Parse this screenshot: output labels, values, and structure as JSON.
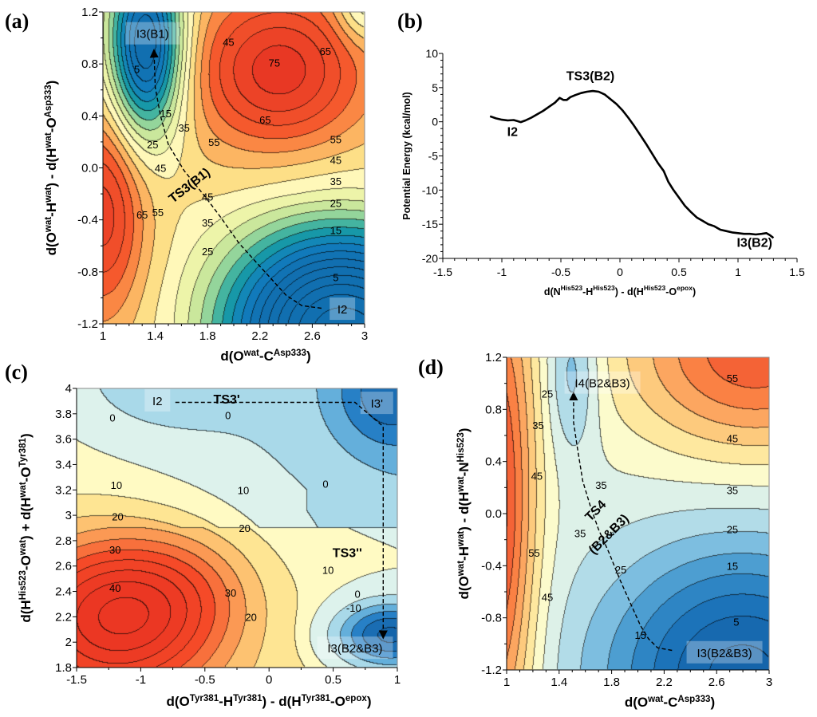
{
  "chart_data": [
    {
      "id": "a",
      "panel_label": "(a)",
      "type": "heatmap",
      "subtype": "filled-contour",
      "xlabel": {
        "pre": "d(O",
        "sup1": "wat",
        "mid": "-C",
        "sup2": "Asp333",
        "post": ")"
      },
      "ylabel": {
        "pre": "d(O",
        "sup1": "wat",
        "mid": "-H",
        "sup2": "wat",
        "mid2": ") - d(H",
        "sup3": "wat",
        "mid3": "-O",
        "sup4": "Asp333",
        "post": ")"
      },
      "xlim": [
        1,
        3
      ],
      "ylim": [
        -1.2,
        1.2
      ],
      "xticks": [
        "1",
        "1.4",
        "1.8",
        "2.2",
        "2.6",
        "3"
      ],
      "yticks": [
        "-1.2",
        "-0.8",
        "-0.4",
        "0.0",
        "0.4",
        "0.8",
        "1.2"
      ],
      "contour_levels": [
        5,
        15,
        25,
        35,
        45,
        55,
        65,
        75
      ],
      "contour_labels": [
        {
          "text": "5",
          "x": 1.26,
          "y": 0.76
        },
        {
          "text": "15",
          "x": 1.48,
          "y": 0.42
        },
        {
          "text": "25",
          "x": 1.38,
          "y": 0.18
        },
        {
          "text": "35",
          "x": 1.62,
          "y": 0.31
        },
        {
          "text": "45",
          "x": 1.44,
          "y": 0.0
        },
        {
          "text": "45",
          "x": 1.96,
          "y": 0.97
        },
        {
          "text": "55",
          "x": 1.85,
          "y": 0.2
        },
        {
          "text": "75",
          "x": 2.31,
          "y": 0.81
        },
        {
          "text": "65",
          "x": 2.7,
          "y": 0.9
        },
        {
          "text": "65",
          "x": 2.24,
          "y": 0.37
        },
        {
          "text": "55",
          "x": 2.78,
          "y": 0.22
        },
        {
          "text": "45",
          "x": 2.78,
          "y": 0.06
        },
        {
          "text": "35",
          "x": 2.78,
          "y": -0.1
        },
        {
          "text": "25",
          "x": 2.78,
          "y": -0.27
        },
        {
          "text": "15",
          "x": 2.78,
          "y": -0.48
        },
        {
          "text": "5",
          "x": 2.78,
          "y": -0.84
        },
        {
          "text": "65",
          "x": 1.3,
          "y": -0.36
        },
        {
          "text": "55",
          "x": 1.42,
          "y": -0.34
        },
        {
          "text": "45",
          "x": 1.8,
          "y": -0.22
        },
        {
          "text": "35",
          "x": 1.8,
          "y": -0.42
        },
        {
          "text": "25",
          "x": 1.8,
          "y": -0.64
        }
      ],
      "states": [
        {
          "label": "I3(B1)",
          "x": 1.38,
          "y": 1.03
        },
        {
          "label": "I2",
          "x": 2.83,
          "y": -1.09
        }
      ],
      "transition_states": [
        {
          "label": "TS3(B1)",
          "x": 1.68,
          "y": -0.16
        }
      ],
      "reaction_path": [
        [
          2.67,
          -1.08
        ],
        [
          2.52,
          -1.06
        ],
        [
          2.4,
          -0.98
        ],
        [
          2.22,
          -0.78
        ],
        [
          2.04,
          -0.58
        ],
        [
          1.9,
          -0.38
        ],
        [
          1.78,
          -0.22
        ],
        [
          1.62,
          -0.02
        ],
        [
          1.5,
          0.18
        ],
        [
          1.44,
          0.4
        ],
        [
          1.4,
          0.62
        ],
        [
          1.39,
          0.9
        ]
      ]
    },
    {
      "id": "b",
      "panel_label": "(b)",
      "type": "line",
      "xlabel": {
        "pre": "d(N",
        "sup1": "His523",
        "mid": "-H",
        "sup2": "His523",
        "mid2": ") - d(H",
        "sup3": "His523",
        "mid3": "-O",
        "sup4": "epox",
        "post": ")"
      },
      "ylabel": "Potential Energy (kcal/mol)",
      "xlim": [
        -1.5,
        1.5
      ],
      "ylim": [
        -20,
        10
      ],
      "xticks": [
        "-1.5",
        "-1",
        "-0.5",
        "0",
        "0.5",
        "1",
        "1.5"
      ],
      "yticks": [
        "-20",
        "-15",
        "-10",
        "-5",
        "0",
        "5",
        "10"
      ],
      "grid": false,
      "series": [
        {
          "name": "potential energy",
          "x": [
            -1.1,
            -1.05,
            -1.0,
            -0.95,
            -0.9,
            -0.87,
            -0.84,
            -0.8,
            -0.75,
            -0.7,
            -0.65,
            -0.6,
            -0.55,
            -0.51,
            -0.48,
            -0.45,
            -0.42,
            -0.38,
            -0.33,
            -0.28,
            -0.23,
            -0.18,
            -0.13,
            -0.08,
            -0.03,
            0.02,
            0.07,
            0.12,
            0.17,
            0.22,
            0.27,
            0.32,
            0.37,
            0.41,
            0.45,
            0.5,
            0.55,
            0.6,
            0.65,
            0.7,
            0.75,
            0.8,
            0.85,
            0.9,
            0.95,
            1.0,
            1.05,
            1.1,
            1.15,
            1.2,
            1.24,
            1.27,
            1.3
          ],
          "y": [
            0.8,
            0.5,
            0.3,
            0.2,
            0.25,
            0.1,
            -0.05,
            0.2,
            0.6,
            1.1,
            1.6,
            2.2,
            2.8,
            3.5,
            3.2,
            3.2,
            3.6,
            3.9,
            4.2,
            4.4,
            4.5,
            4.4,
            4.0,
            3.3,
            2.6,
            1.7,
            0.6,
            -0.6,
            -1.9,
            -3.2,
            -4.6,
            -6.0,
            -7.2,
            -8.8,
            -9.9,
            -11.1,
            -12.3,
            -13.2,
            -14.0,
            -14.5,
            -15.0,
            -15.3,
            -15.8,
            -16.0,
            -16.2,
            -16.3,
            -16.4,
            -16.4,
            -16.5,
            -16.4,
            -16.3,
            -16.6,
            -17.0
          ]
        }
      ],
      "annotations": [
        {
          "text": "TS3(B2)",
          "x": -0.25,
          "y": 6.1
        },
        {
          "text": "I2",
          "x": -0.91,
          "y": -2.1
        },
        {
          "text": "I3(B2)",
          "x": 1.14,
          "y": -18.3
        }
      ]
    },
    {
      "id": "c",
      "panel_label": "(c)",
      "type": "heatmap",
      "subtype": "filled-contour",
      "xlabel": {
        "pre": "d(O",
        "sup1": "Tyr381",
        "mid": "-H",
        "sup2": "Tyr381",
        "mid2": ") - d(H",
        "sup3": "Tyr381",
        "mid3": "-O",
        "sup4": "epox",
        "post": ")"
      },
      "ylabel": {
        "pre": "d(H",
        "sup1": "His523",
        "mid": "-O",
        "sup2": "wat",
        "mid2": ") + d(H",
        "sup3": "wat",
        "mid3": "-O",
        "sup4": "Tyr381",
        "post": ")"
      },
      "xlim": [
        -1.5,
        1
      ],
      "ylim": [
        1.8,
        4
      ],
      "xticks": [
        "-1.5",
        "-1",
        "-0.5",
        "0",
        "0.5",
        "1"
      ],
      "yticks": [
        "1.8",
        "2",
        "2.2",
        "2.4",
        "2.6",
        "2.8",
        "3",
        "3.2",
        "3.4",
        "3.6",
        "3.8",
        "4"
      ],
      "contour_levels": [
        -15,
        -10,
        -5,
        0,
        5,
        10,
        15,
        20,
        25,
        30,
        35,
        40
      ],
      "contour_labels": [
        {
          "text": "0",
          "x": -1.22,
          "y": 3.77
        },
        {
          "text": "0",
          "x": -0.32,
          "y": 3.79
        },
        {
          "text": "0",
          "x": 0.44,
          "y": 3.25
        },
        {
          "text": "10",
          "x": -1.19,
          "y": 3.24
        },
        {
          "text": "10",
          "x": -0.2,
          "y": 3.2
        },
        {
          "text": "10",
          "x": 0.46,
          "y": 2.57
        },
        {
          "text": "20",
          "x": -1.18,
          "y": 2.99
        },
        {
          "text": "20",
          "x": -0.19,
          "y": 2.9
        },
        {
          "text": "20",
          "x": -0.14,
          "y": 2.2
        },
        {
          "text": "30",
          "x": -1.2,
          "y": 2.73
        },
        {
          "text": "30",
          "x": -0.3,
          "y": 2.39
        },
        {
          "text": "40",
          "x": -1.2,
          "y": 2.43
        },
        {
          "text": "0",
          "x": 0.69,
          "y": 2.38
        },
        {
          "text": "-10",
          "x": 0.66,
          "y": 2.27
        }
      ],
      "states": [
        {
          "label": "I2",
          "x": -0.87,
          "y": 3.9
        },
        {
          "label": "I3'",
          "x": 0.84,
          "y": 3.88
        },
        {
          "label": "I3(B2&B3)",
          "x": 0.67,
          "y": 1.95
        }
      ],
      "transition_states": [
        {
          "label": "TS3'",
          "x": -0.33,
          "y": 3.88
        },
        {
          "label": "TS3''",
          "x": 0.61,
          "y": 2.67
        }
      ],
      "reaction_path": [
        [
          -0.73,
          3.89
        ],
        [
          0.67,
          3.89
        ],
        [
          0.89,
          3.7
        ],
        [
          0.89,
          2.04
        ]
      ]
    },
    {
      "id": "d",
      "panel_label": "(d)",
      "type": "heatmap",
      "subtype": "filled-contour",
      "xlabel": {
        "pre": "d(O",
        "sup1": "wat",
        "mid": "-C",
        "sup2": "Asp333",
        "post": ")"
      },
      "ylabel": {
        "pre": "d(O",
        "sup1": "wat",
        "mid": "-H",
        "sup2": "wat",
        "mid2": ") - d(H",
        "sup3": "wat",
        "mid3": "-N",
        "sup4": "His523",
        "post": ")"
      },
      "xlim": [
        1,
        3
      ],
      "ylim": [
        -1.2,
        1.2
      ],
      "xticks": [
        "1",
        "1.4",
        "1.8",
        "2.2",
        "2.6",
        "3"
      ],
      "yticks": [
        "-1.2",
        "-0.8",
        "-0.4",
        "0.0",
        "0.4",
        "0.8",
        "1.2"
      ],
      "contour_levels": [
        5,
        15,
        25,
        35,
        45,
        55,
        65
      ],
      "contour_labels": [
        {
          "text": "25",
          "x": 1.31,
          "y": 0.92
        },
        {
          "text": "35",
          "x": 1.24,
          "y": 0.68
        },
        {
          "text": "45",
          "x": 1.23,
          "y": 0.29
        },
        {
          "text": "35",
          "x": 1.72,
          "y": 0.22
        },
        {
          "text": "35",
          "x": 1.56,
          "y": -0.15
        },
        {
          "text": "55",
          "x": 1.21,
          "y": -0.3
        },
        {
          "text": "45",
          "x": 1.31,
          "y": -0.64
        },
        {
          "text": "25",
          "x": 1.87,
          "y": -0.43
        },
        {
          "text": "15",
          "x": 2.02,
          "y": -0.93
        },
        {
          "text": "55",
          "x": 2.72,
          "y": 1.04
        },
        {
          "text": "45",
          "x": 2.72,
          "y": 0.58
        },
        {
          "text": "35",
          "x": 2.72,
          "y": 0.18
        },
        {
          "text": "25",
          "x": 2.72,
          "y": -0.12
        },
        {
          "text": "15",
          "x": 2.72,
          "y": -0.4
        },
        {
          "text": "5",
          "x": 2.75,
          "y": -0.83
        }
      ],
      "states": [
        {
          "label": "I4(B2&B3)",
          "x": 1.73,
          "y": 1.0
        },
        {
          "label": "I3(B2&B3)",
          "x": 2.66,
          "y": -1.07
        }
      ],
      "transition_states": [
        {
          "label": "TS4",
          "x": 1.7,
          "y": 0.0
        },
        {
          "label": "(B2&B3)",
          "x": 1.8,
          "y": -0.18
        }
      ],
      "reaction_path": [
        [
          2.26,
          -1.05
        ],
        [
          2.15,
          -1.03
        ],
        [
          2.08,
          -0.96
        ],
        [
          2.02,
          -0.86
        ],
        [
          1.94,
          -0.68
        ],
        [
          1.86,
          -0.5
        ],
        [
          1.78,
          -0.3
        ],
        [
          1.7,
          -0.12
        ],
        [
          1.64,
          0.05
        ],
        [
          1.58,
          0.25
        ],
        [
          1.54,
          0.5
        ],
        [
          1.51,
          0.7
        ],
        [
          1.51,
          0.92
        ]
      ]
    }
  ]
}
